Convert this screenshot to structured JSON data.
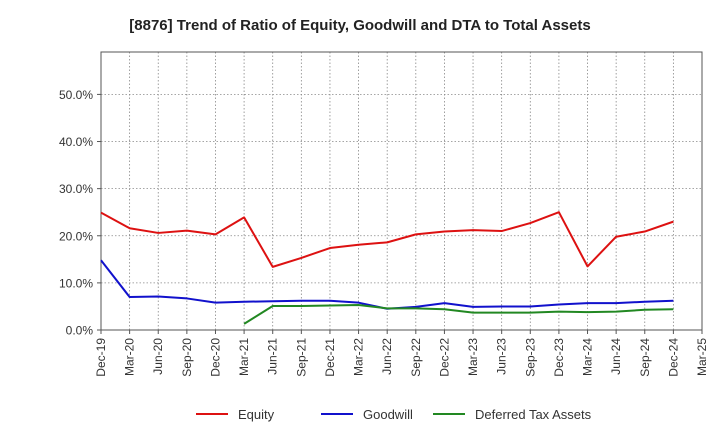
{
  "chart_data": {
    "type": "line",
    "title": "[8876]  Trend of Ratio of Equity, Goodwill and DTA to Total Assets",
    "xlabel": "",
    "ylabel": "",
    "categories": [
      "Dec-19",
      "Mar-20",
      "Jun-20",
      "Sep-20",
      "Dec-20",
      "Mar-21",
      "Jun-21",
      "Sep-21",
      "Dec-21",
      "Mar-22",
      "Jun-22",
      "Sep-22",
      "Dec-22",
      "Mar-23",
      "Jun-23",
      "Sep-23",
      "Dec-23",
      "Mar-24",
      "Jun-24",
      "Sep-24",
      "Dec-24",
      "Mar-25"
    ],
    "y_tick_labels": [
      "0.0%",
      "10.0%",
      "20.0%",
      "30.0%",
      "40.0%",
      "50.0%"
    ],
    "y_ticks": [
      0,
      10,
      20,
      30,
      40,
      50
    ],
    "ylim": [
      0,
      59
    ],
    "grid": true,
    "legend_position": "bottom",
    "series": [
      {
        "name": "Equity",
        "color": "#dd1111",
        "values": [
          24.9,
          21.6,
          20.6,
          21.1,
          20.3,
          23.9,
          13.4,
          15.3,
          17.4,
          18.1,
          18.6,
          20.3,
          20.9,
          21.2,
          21.0,
          22.7,
          25.0,
          13.5,
          19.8,
          20.9,
          23.0,
          null
        ]
      },
      {
        "name": "Goodwill",
        "color": "#1111cc",
        "values": [
          14.8,
          7.0,
          7.1,
          6.7,
          5.8,
          6.0,
          6.1,
          6.2,
          6.2,
          5.8,
          4.5,
          4.9,
          5.7,
          4.9,
          5.0,
          5.0,
          5.4,
          5.7,
          5.7,
          6.0,
          6.2,
          null
        ]
      },
      {
        "name": "Deferred Tax Assets",
        "color": "#228822",
        "values": [
          null,
          null,
          null,
          null,
          null,
          1.3,
          5.1,
          5.1,
          5.2,
          5.3,
          4.6,
          4.6,
          4.4,
          3.7,
          3.7,
          3.7,
          3.9,
          3.8,
          3.9,
          4.3,
          4.4,
          null
        ]
      }
    ]
  }
}
